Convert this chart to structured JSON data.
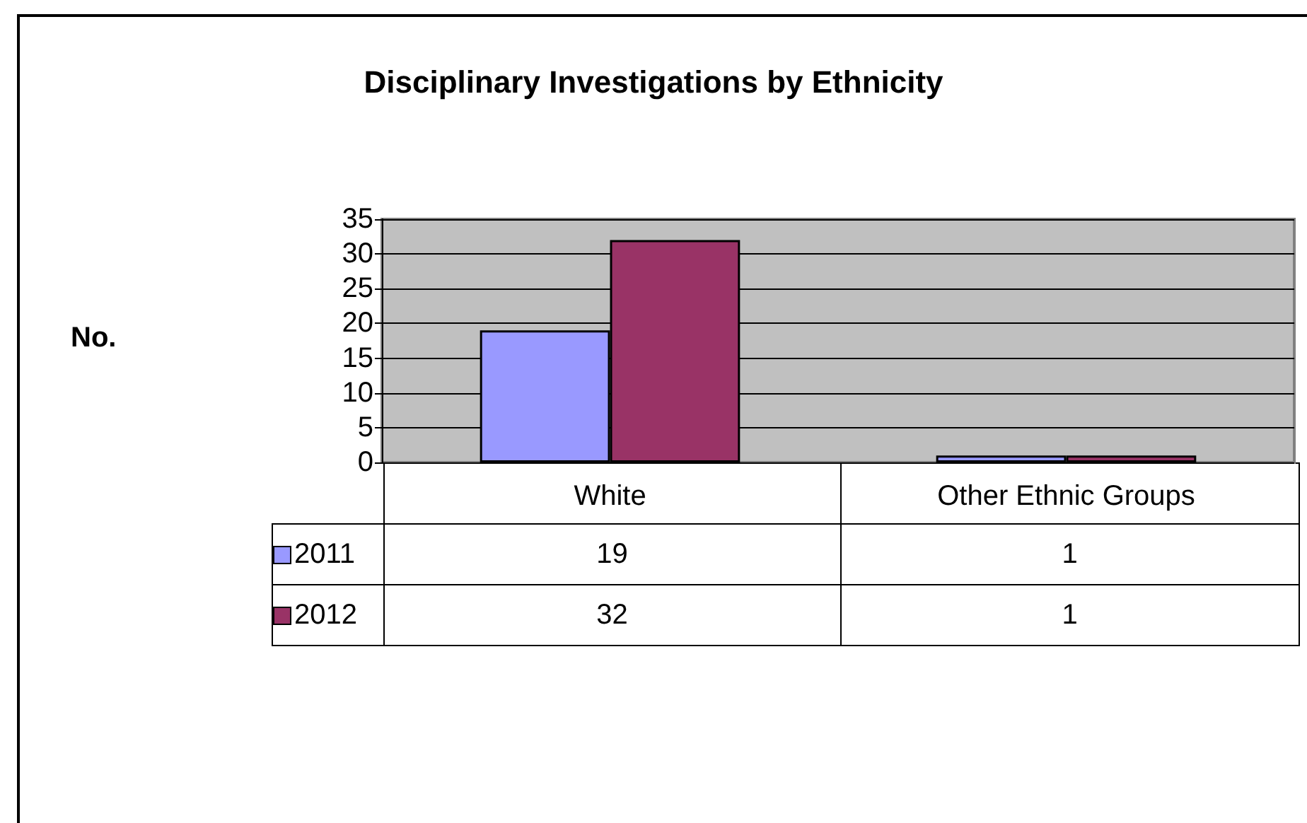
{
  "chart_data": {
    "type": "bar",
    "title": "Disciplinary Investigations by Ethnicity",
    "annotations": [
      "No."
    ],
    "categories": [
      "White",
      "Other Ethnic Groups"
    ],
    "series": [
      {
        "name": "2011",
        "color": "#9999ff",
        "values": [
          19,
          1
        ]
      },
      {
        "name": "2012",
        "color": "#993366",
        "values": [
          32,
          1
        ]
      }
    ],
    "ylim": [
      0,
      35
    ],
    "yticks": [
      0,
      5,
      10,
      15,
      20,
      25,
      30,
      35
    ],
    "grid": "y",
    "legend": "bottom left",
    "data_labels": true
  }
}
